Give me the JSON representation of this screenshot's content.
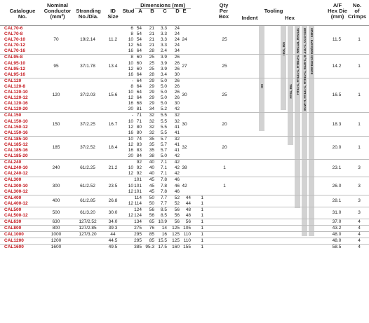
{
  "headers": {
    "catalogue": [
      "Catalogue",
      "No."
    ],
    "nominal": [
      "Nominal",
      "Conductor",
      "(mm²)"
    ],
    "stranding": [
      "Stranding",
      "No./Dia."
    ],
    "id_size": [
      "ID",
      "Size"
    ],
    "stud": "Stud",
    "dimensions": "Dimensions (mm)",
    "a": "A",
    "b": "B",
    "c": "C",
    "d": "D",
    "e": "E",
    "qty": [
      "Qty",
      "Per",
      "Box"
    ],
    "tooling": "Tooling",
    "indent": "Indent",
    "hex": "Hex",
    "af": [
      "A/F",
      "Hex Die",
      "(mm)"
    ],
    "crimps": [
      "No.",
      "of",
      "Crimps"
    ]
  },
  "tooling_labels": [
    "K9",
    "HXK, 805",
    "HT51, 851",
    "HT51-C, HT131-C, HT81U-C, RHC131, RHU131",
    "ECW-H, HT131-C, HT81U-C, B135-C, B131U-C, CCO-5158",
    "EOW-B10 Die 605hexP8 - 68N20"
  ],
  "groups": [
    {
      "nominal": "70",
      "stranding": "19/2.14",
      "id": "11.2",
      "e": "24",
      "qty": "25",
      "af": "11.5",
      "crimps": "1",
      "rows": [
        [
          "CAL70-6",
          "6",
          "54",
          "21",
          "3.3",
          "24"
        ],
        [
          "CAL70-8",
          "8",
          "54",
          "21",
          "3.3",
          "24"
        ],
        [
          "CAL70-10",
          "10",
          "54",
          "21",
          "3.3",
          "24"
        ],
        [
          "CAL70-12",
          "12",
          "54",
          "21",
          "3.3",
          "24"
        ],
        [
          "CAL70-16",
          "16",
          "64",
          "28",
          "2.4",
          "34"
        ]
      ]
    },
    {
      "nominal": "95",
      "stranding": "37/1.78",
      "id": "13.4",
      "e": "27",
      "qty": "25",
      "af": "14.2",
      "crimps": "1",
      "rows": [
        [
          "CAL95-8",
          "8",
          "60",
          "25",
          "3.9",
          "26"
        ],
        [
          "CAL95-10",
          "10",
          "60",
          "25",
          "3.9",
          "26"
        ],
        [
          "CAL95-12",
          "12",
          "60",
          "25",
          "3.9",
          "26"
        ],
        [
          "CAL95-16",
          "16",
          "64",
          "28",
          "3.4",
          "30"
        ]
      ]
    },
    {
      "nominal": "120",
      "stranding": "37/2.03",
      "id": "15.6",
      "e": "30",
      "qty": "25",
      "af": "16.5",
      "crimps": "1",
      "rows": [
        [
          "CAL120",
          "-",
          "64",
          "29",
          "5.0",
          "26"
        ],
        [
          "CAL120-8",
          "8",
          "64",
          "29",
          "5.0",
          "26"
        ],
        [
          "CAL120-10",
          "10",
          "64",
          "29",
          "5.0",
          "26"
        ],
        [
          "CAL120-12",
          "12",
          "64",
          "29",
          "5.0",
          "26"
        ],
        [
          "CAL120-16",
          "16",
          "68",
          "29",
          "5.0",
          "30"
        ],
        [
          "CAL120-20",
          "20",
          "81",
          "34",
          "5.2",
          "42"
        ]
      ]
    },
    {
      "nominal": "150",
      "stranding": "37/2.25",
      "id": "16.7",
      "e": "30",
      "qty": "20",
      "af": "18.3",
      "crimps": "1",
      "rows": [
        [
          "CAL150",
          "-",
          "71",
          "32",
          "5.5",
          "32"
        ],
        [
          "CAL150-10",
          "10",
          "71",
          "32",
          "5.5",
          "32"
        ],
        [
          "CAL150-12",
          "12",
          "80",
          "32",
          "5.5",
          "41"
        ],
        [
          "CAL150-16",
          "16",
          "80",
          "32",
          "5.5",
          "41"
        ]
      ]
    },
    {
      "nominal": "185",
      "stranding": "37/2.52",
      "id": "18.4",
      "e": "32",
      "qty": "20",
      "af": "20.0",
      "crimps": "1",
      "rows": [
        [
          "CAL185-10",
          "10",
          "74",
          "35",
          "5.7",
          "32"
        ],
        [
          "CAL185-12",
          "12",
          "83",
          "35",
          "5.7",
          "41"
        ],
        [
          "CAL185-16",
          "16",
          "83",
          "35",
          "5.7",
          "41"
        ],
        [
          "CAL185-20",
          "20",
          "84",
          "38",
          "5.0",
          "42"
        ]
      ]
    },
    {
      "nominal": "240",
      "stranding": "61/2.25",
      "id": "21.2",
      "e": "38",
      "qty": "1",
      "af": "23.1",
      "crimps": "3",
      "rows": [
        [
          "CAL240",
          "",
          "92",
          "40",
          "7.1",
          "42"
        ],
        [
          "CAL240-10",
          "10",
          "92",
          "40",
          "7.1",
          "42"
        ],
        [
          "CAL240-12",
          "12",
          "92",
          "40",
          "7.1",
          "42"
        ]
      ]
    },
    {
      "nominal": "300",
      "stranding": "61/2.52",
      "id": "23.5",
      "e": "42",
      "qty": "1",
      "af": "26.0",
      "crimps": "3",
      "rows": [
        [
          "CAL300",
          "",
          "101",
          "45",
          "7.8",
          "46"
        ],
        [
          "CAL300-10",
          "10",
          "101",
          "45",
          "7.8",
          "46"
        ],
        [
          "CAL300-12",
          "12",
          "101",
          "45",
          "7.8",
          "46"
        ]
      ]
    },
    {
      "nominal": "400",
      "stranding": "61/2.85",
      "id": "26.8",
      "e": "",
      "qty": "",
      "af": "28.1",
      "crimps": "3",
      "rows": [
        [
          "CAL400",
          "",
          "114",
          "50",
          "7.7",
          "52",
          "44",
          "1"
        ],
        [
          "CAL400-12",
          "12",
          "114",
          "50",
          "7.7",
          "52",
          "44",
          "1"
        ]
      ]
    },
    {
      "nominal": "500",
      "stranding": "61/3.20",
      "id": "30.0",
      "e": "",
      "qty": "",
      "af": "31.0",
      "crimps": "3",
      "crimps2": "3",
      "rows": [
        [
          "CAL500",
          "",
          "124",
          "56",
          "8.5",
          "56",
          "48",
          "1"
        ],
        [
          "CAL500-12",
          "12",
          "124",
          "56",
          "8.5",
          "56",
          "48",
          "1"
        ]
      ]
    },
    {
      "single": [
        "CAL630",
        "630",
        "127/2.52",
        "34.0",
        "",
        "134",
        "65",
        "10.9",
        "56",
        "56",
        "1",
        "37.0",
        "4"
      ]
    },
    {
      "single": [
        "CAL800",
        "800",
        "127/2.85",
        "39.3",
        "",
        "275",
        "76",
        "14",
        "125",
        "105",
        "1",
        "43.2",
        "4"
      ]
    },
    {
      "single": [
        "CAL1000",
        "1000",
        "127/3.20",
        "44",
        "",
        "295",
        "85",
        "16",
        "125",
        "110",
        "1",
        "48.0",
        "4"
      ]
    },
    {
      "single": [
        "CAL1200",
        "1200",
        "",
        "44.5",
        "",
        "295",
        "85",
        "15.5",
        "125",
        "110",
        "1",
        "48.0",
        "4"
      ]
    },
    {
      "single": [
        "CAL1600",
        "1600",
        "",
        "49.5",
        "",
        "385",
        "95.3",
        "17.5",
        "160",
        "155",
        "1",
        "58.5",
        "4"
      ]
    }
  ]
}
